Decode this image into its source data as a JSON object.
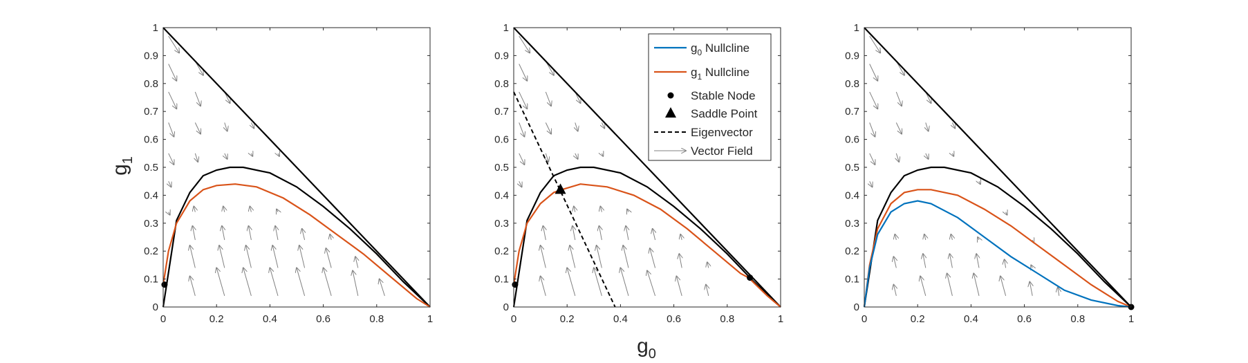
{
  "colors": {
    "g0_nullcline": "#0072BD",
    "g1_nullcline": "#D95319",
    "boundary": "#000000",
    "vector_field": "#808080",
    "eigenvector": "#000000",
    "axes": "#262626"
  },
  "figure": {
    "xlabel_main": "g",
    "xlabel_sub": "0",
    "ylabel_main": "g",
    "ylabel_sub": "1"
  },
  "legend": {
    "placement": "top-right of middle panel",
    "entries": [
      {
        "id": "g0",
        "main": "g",
        "sub": "0",
        "rest": " Nullcline",
        "symbol": "line",
        "color": "#0072BD"
      },
      {
        "id": "g1",
        "main": "g",
        "sub": "1",
        "rest": " Nullcline",
        "symbol": "line",
        "color": "#D95319"
      },
      {
        "id": "stable",
        "main": "Stable Node",
        "sub": "",
        "rest": "",
        "symbol": "dot",
        "color": "#000000"
      },
      {
        "id": "saddle",
        "main": "Saddle Point",
        "sub": "",
        "rest": "",
        "symbol": "triangle",
        "color": "#000000"
      },
      {
        "id": "eig",
        "main": "Eigenvector",
        "sub": "",
        "rest": "",
        "symbol": "dashed",
        "color": "#000000"
      },
      {
        "id": "vf",
        "main": "Vector Field",
        "sub": "",
        "rest": "",
        "symbol": "arrow",
        "color": "#808080"
      }
    ]
  },
  "chart_data": [
    {
      "type": "line",
      "panel": "left",
      "xlim": [
        0,
        1
      ],
      "ylim": [
        0,
        1
      ],
      "xticks": [
        "0",
        "0.2",
        "0.4",
        "0.6",
        "0.8",
        "1"
      ],
      "yticks": [
        "0",
        "0.1",
        "0.2",
        "0.3",
        "0.4",
        "0.5",
        "0.6",
        "0.7",
        "0.8",
        "0.9",
        "1"
      ],
      "grid": false,
      "series": [
        {
          "role": "boundary-diagonal",
          "x": [
            0,
            1
          ],
          "y": [
            1,
            0
          ]
        },
        {
          "role": "boundary-curve",
          "x": [
            0,
            0.05,
            0.1,
            0.15,
            0.2,
            0.25,
            0.3,
            0.4,
            0.5,
            0.6,
            0.7,
            0.8,
            0.9,
            1
          ],
          "y": [
            0,
            0.31,
            0.41,
            0.47,
            0.49,
            0.5,
            0.5,
            0.48,
            0.43,
            0.36,
            0.28,
            0.19,
            0.09,
            0
          ]
        },
        {
          "role": "g1-nullcline",
          "x": [
            0,
            0.02,
            0.05,
            0.1,
            0.15,
            0.2,
            0.27,
            0.35,
            0.45,
            0.55,
            0.65,
            0.75,
            0.85,
            0.95,
            1
          ],
          "y": [
            0.08,
            0.2,
            0.3,
            0.38,
            0.42,
            0.435,
            0.44,
            0.43,
            0.39,
            0.33,
            0.26,
            0.19,
            0.11,
            0.03,
            0
          ]
        }
      ],
      "stable_nodes": [
        [
          0.005,
          0.08
        ]
      ],
      "saddle_points": [],
      "eigenvector": [],
      "vector_field": [
        [
          0.02,
          0.97,
          0.04,
          -0.06
        ],
        [
          0.02,
          0.87,
          0.03,
          -0.06
        ],
        [
          0.02,
          0.77,
          0.03,
          -0.06
        ],
        [
          0.02,
          0.66,
          0.02,
          -0.05
        ],
        [
          0.02,
          0.55,
          0.02,
          -0.04
        ],
        [
          0.02,
          0.45,
          0.01,
          -0.02
        ],
        [
          0.02,
          0.34,
          0.005,
          -0.01
        ],
        [
          0.12,
          0.88,
          0.03,
          -0.05
        ],
        [
          0.12,
          0.77,
          0.02,
          -0.05
        ],
        [
          0.12,
          0.66,
          0.02,
          -0.04
        ],
        [
          0.12,
          0.55,
          0.01,
          -0.03
        ],
        [
          0.23,
          0.77,
          0.02,
          -0.04
        ],
        [
          0.23,
          0.66,
          0.01,
          -0.03
        ],
        [
          0.23,
          0.55,
          0.01,
          -0.02
        ],
        [
          0.33,
          0.66,
          0.01,
          -0.02
        ],
        [
          0.33,
          0.55,
          0.005,
          -0.01
        ],
        [
          0.43,
          0.55,
          0.005,
          -0.01
        ],
        [
          0.12,
          0.34,
          -0.005,
          0.02
        ],
        [
          0.12,
          0.24,
          -0.01,
          0.05
        ],
        [
          0.12,
          0.14,
          -0.02,
          0.08
        ],
        [
          0.12,
          0.04,
          -0.02,
          0.07
        ],
        [
          0.23,
          0.34,
          -0.005,
          0.02
        ],
        [
          0.23,
          0.24,
          -0.01,
          0.05
        ],
        [
          0.23,
          0.14,
          -0.02,
          0.08
        ],
        [
          0.23,
          0.04,
          -0.03,
          0.1
        ],
        [
          0.33,
          0.34,
          -0.005,
          0.02
        ],
        [
          0.33,
          0.24,
          -0.01,
          0.05
        ],
        [
          0.33,
          0.14,
          -0.02,
          0.08
        ],
        [
          0.33,
          0.04,
          -0.03,
          0.1
        ],
        [
          0.43,
          0.34,
          -0.005,
          0.01
        ],
        [
          0.43,
          0.24,
          -0.01,
          0.05
        ],
        [
          0.43,
          0.14,
          -0.02,
          0.08
        ],
        [
          0.43,
          0.04,
          -0.03,
          0.1
        ],
        [
          0.53,
          0.24,
          -0.01,
          0.04
        ],
        [
          0.53,
          0.14,
          -0.02,
          0.08
        ],
        [
          0.53,
          0.04,
          -0.03,
          0.1
        ],
        [
          0.63,
          0.24,
          -0.005,
          0.02
        ],
        [
          0.63,
          0.14,
          -0.02,
          0.07
        ],
        [
          0.63,
          0.04,
          -0.03,
          0.1
        ],
        [
          0.73,
          0.14,
          -0.01,
          0.04
        ],
        [
          0.73,
          0.04,
          -0.02,
          0.09
        ],
        [
          0.83,
          0.04,
          -0.02,
          0.06
        ]
      ]
    },
    {
      "type": "line",
      "panel": "middle",
      "xlim": [
        0,
        1
      ],
      "ylim": [
        0,
        1
      ],
      "xticks": [
        "0",
        "0.2",
        "0.4",
        "0.6",
        "0.8",
        "1"
      ],
      "yticks": [
        "0",
        "0.1",
        "0.2",
        "0.3",
        "0.4",
        "0.5",
        "0.6",
        "0.7",
        "0.8",
        "0.9",
        "1"
      ],
      "grid": false,
      "series": [
        {
          "role": "boundary-diagonal",
          "x": [
            0,
            1
          ],
          "y": [
            1,
            0
          ]
        },
        {
          "role": "boundary-curve",
          "x": [
            0,
            0.05,
            0.1,
            0.15,
            0.2,
            0.25,
            0.3,
            0.4,
            0.5,
            0.6,
            0.7,
            0.8,
            0.9,
            1
          ],
          "y": [
            0,
            0.31,
            0.41,
            0.47,
            0.49,
            0.5,
            0.5,
            0.48,
            0.43,
            0.36,
            0.28,
            0.19,
            0.09,
            0
          ]
        },
        {
          "role": "g1-nullcline",
          "x": [
            0,
            0.02,
            0.05,
            0.1,
            0.15,
            0.18,
            0.25,
            0.35,
            0.45,
            0.55,
            0.65,
            0.75,
            0.85,
            0.88,
            0.95,
            1
          ],
          "y": [
            0.08,
            0.2,
            0.3,
            0.37,
            0.41,
            0.42,
            0.44,
            0.43,
            0.4,
            0.35,
            0.28,
            0.2,
            0.12,
            0.105,
            0.04,
            0
          ]
        }
      ],
      "stable_nodes": [
        [
          0.005,
          0.08
        ],
        [
          0.885,
          0.105
        ]
      ],
      "saddle_points": [
        [
          0.175,
          0.42
        ]
      ],
      "eigenvector": [
        [
          0,
          0.77
        ],
        [
          0.38,
          0
        ]
      ],
      "vector_field": [
        [
          0.02,
          0.97,
          0.04,
          -0.06
        ],
        [
          0.02,
          0.87,
          0.03,
          -0.06
        ],
        [
          0.02,
          0.77,
          0.03,
          -0.06
        ],
        [
          0.02,
          0.66,
          0.02,
          -0.05
        ],
        [
          0.02,
          0.55,
          0.02,
          -0.04
        ],
        [
          0.02,
          0.45,
          0.01,
          -0.02
        ],
        [
          0.12,
          0.88,
          0.03,
          -0.05
        ],
        [
          0.12,
          0.77,
          0.02,
          -0.05
        ],
        [
          0.12,
          0.66,
          0.02,
          -0.04
        ],
        [
          0.12,
          0.55,
          0.01,
          -0.03
        ],
        [
          0.23,
          0.77,
          0.02,
          -0.04
        ],
        [
          0.23,
          0.66,
          0.01,
          -0.03
        ],
        [
          0.23,
          0.55,
          0.01,
          -0.02
        ],
        [
          0.33,
          0.66,
          0.01,
          -0.02
        ],
        [
          0.33,
          0.55,
          0.005,
          -0.01
        ],
        [
          0.12,
          0.24,
          -0.01,
          0.05
        ],
        [
          0.12,
          0.14,
          -0.02,
          0.08
        ],
        [
          0.12,
          0.04,
          -0.02,
          0.07
        ],
        [
          0.23,
          0.34,
          -0.005,
          0.02
        ],
        [
          0.23,
          0.24,
          -0.01,
          0.05
        ],
        [
          0.23,
          0.14,
          -0.02,
          0.08
        ],
        [
          0.23,
          0.04,
          -0.03,
          0.1
        ],
        [
          0.33,
          0.34,
          -0.005,
          0.02
        ],
        [
          0.33,
          0.24,
          -0.01,
          0.05
        ],
        [
          0.33,
          0.14,
          -0.02,
          0.08
        ],
        [
          0.33,
          0.04,
          -0.03,
          0.1
        ],
        [
          0.43,
          0.34,
          -0.005,
          0.01
        ],
        [
          0.43,
          0.24,
          -0.01,
          0.05
        ],
        [
          0.43,
          0.14,
          -0.02,
          0.08
        ],
        [
          0.43,
          0.04,
          -0.03,
          0.1
        ],
        [
          0.53,
          0.24,
          -0.01,
          0.04
        ],
        [
          0.53,
          0.14,
          -0.02,
          0.07
        ],
        [
          0.53,
          0.04,
          -0.03,
          0.09
        ],
        [
          0.63,
          0.24,
          -0.005,
          0.02
        ],
        [
          0.63,
          0.14,
          -0.01,
          0.05
        ],
        [
          0.63,
          0.04,
          -0.02,
          0.07
        ],
        [
          0.73,
          0.14,
          -0.005,
          0.02
        ],
        [
          0.73,
          0.04,
          -0.01,
          0.04
        ]
      ]
    },
    {
      "type": "line",
      "panel": "right",
      "xlim": [
        0,
        1
      ],
      "ylim": [
        0,
        1
      ],
      "xticks": [
        "0",
        "0.2",
        "0.4",
        "0.6",
        "0.8",
        "1"
      ],
      "yticks": [
        "0",
        "0.1",
        "0.2",
        "0.3",
        "0.4",
        "0.5",
        "0.6",
        "0.7",
        "0.8",
        "0.9",
        "1"
      ],
      "grid": false,
      "series": [
        {
          "role": "boundary-diagonal",
          "x": [
            0,
            1
          ],
          "y": [
            1,
            0
          ]
        },
        {
          "role": "boundary-curve",
          "x": [
            0,
            0.05,
            0.1,
            0.15,
            0.2,
            0.25,
            0.3,
            0.4,
            0.5,
            0.6,
            0.7,
            0.8,
            0.9,
            1
          ],
          "y": [
            0,
            0.31,
            0.41,
            0.47,
            0.49,
            0.5,
            0.5,
            0.48,
            0.43,
            0.36,
            0.28,
            0.19,
            0.09,
            0
          ]
        },
        {
          "role": "g1-nullcline",
          "x": [
            0,
            0.02,
            0.05,
            0.1,
            0.15,
            0.2,
            0.25,
            0.35,
            0.45,
            0.55,
            0.65,
            0.75,
            0.85,
            0.95,
            1
          ],
          "y": [
            0,
            0.15,
            0.28,
            0.37,
            0.41,
            0.42,
            0.42,
            0.4,
            0.35,
            0.29,
            0.22,
            0.15,
            0.08,
            0.02,
            0
          ]
        },
        {
          "role": "g0-nullcline",
          "x": [
            0,
            0.02,
            0.05,
            0.1,
            0.15,
            0.2,
            0.25,
            0.35,
            0.45,
            0.55,
            0.65,
            0.75,
            0.85,
            0.95,
            1
          ],
          "y": [
            0,
            0.14,
            0.26,
            0.34,
            0.37,
            0.38,
            0.37,
            0.32,
            0.25,
            0.18,
            0.12,
            0.06,
            0.025,
            0.005,
            0
          ]
        }
      ],
      "stable_nodes": [
        [
          1,
          0
        ]
      ],
      "saddle_points": [],
      "eigenvector": [],
      "vector_field": [
        [
          0.02,
          0.97,
          0.04,
          -0.06
        ],
        [
          0.02,
          0.87,
          0.03,
          -0.06
        ],
        [
          0.02,
          0.77,
          0.03,
          -0.06
        ],
        [
          0.02,
          0.66,
          0.02,
          -0.05
        ],
        [
          0.02,
          0.55,
          0.02,
          -0.04
        ],
        [
          0.02,
          0.45,
          0.01,
          -0.02
        ],
        [
          0.12,
          0.88,
          0.03,
          -0.05
        ],
        [
          0.12,
          0.77,
          0.02,
          -0.05
        ],
        [
          0.12,
          0.66,
          0.02,
          -0.04
        ],
        [
          0.12,
          0.55,
          0.01,
          -0.03
        ],
        [
          0.23,
          0.77,
          0.02,
          -0.04
        ],
        [
          0.23,
          0.66,
          0.01,
          -0.03
        ],
        [
          0.23,
          0.55,
          0.01,
          -0.02
        ],
        [
          0.33,
          0.66,
          0.01,
          -0.02
        ],
        [
          0.33,
          0.55,
          0.005,
          -0.01
        ],
        [
          0.43,
          0.45,
          0.005,
          -0.01
        ],
        [
          0.53,
          0.34,
          0.005,
          -0.01
        ],
        [
          0.63,
          0.24,
          0.005,
          -0.01
        ],
        [
          0.12,
          0.24,
          -0.005,
          0.02
        ],
        [
          0.12,
          0.14,
          -0.01,
          0.04
        ],
        [
          0.12,
          0.04,
          -0.01,
          0.04
        ],
        [
          0.23,
          0.24,
          -0.005,
          0.02
        ],
        [
          0.23,
          0.14,
          -0.01,
          0.05
        ],
        [
          0.23,
          0.04,
          -0.02,
          0.07
        ],
        [
          0.33,
          0.24,
          -0.005,
          0.02
        ],
        [
          0.33,
          0.14,
          -0.01,
          0.05
        ],
        [
          0.33,
          0.04,
          -0.02,
          0.08
        ],
        [
          0.43,
          0.24,
          -0.005,
          0.01
        ],
        [
          0.43,
          0.14,
          -0.01,
          0.05
        ],
        [
          0.43,
          0.04,
          -0.02,
          0.08
        ],
        [
          0.53,
          0.14,
          -0.005,
          0.03
        ],
        [
          0.53,
          0.04,
          -0.02,
          0.07
        ],
        [
          0.63,
          0.14,
          -0.005,
          0.01
        ],
        [
          0.63,
          0.04,
          -0.01,
          0.05
        ],
        [
          0.73,
          0.04,
          -0.005,
          0.03
        ]
      ]
    }
  ]
}
